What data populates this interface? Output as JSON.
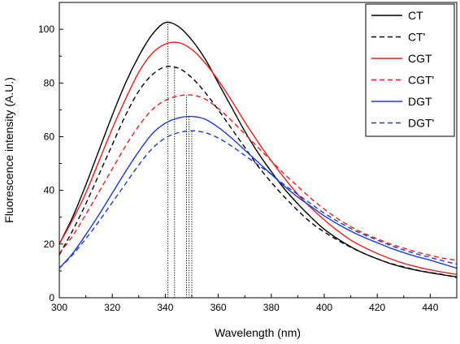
{
  "chart_data": {
    "type": "line",
    "title": "",
    "xlabel": "Wavelength (nm)",
    "ylabel": "Fluorescence intensity (A.U.)",
    "xlim": [
      300,
      450
    ],
    "ylim": [
      0,
      110
    ],
    "xticks": [
      300,
      320,
      340,
      360,
      380,
      400,
      420,
      440
    ],
    "yticks": [
      0,
      20,
      40,
      60,
      80,
      100
    ],
    "legend_position": "top-right",
    "grid": false,
    "x": [
      300,
      305,
      310,
      315,
      320,
      325,
      330,
      335,
      340,
      345,
      350,
      355,
      360,
      365,
      370,
      375,
      380,
      385,
      390,
      395,
      400,
      405,
      410,
      415,
      420,
      425,
      430,
      435,
      440,
      445,
      450
    ],
    "series": [
      {
        "name": "CT",
        "color": "#000000",
        "dash": "solid",
        "values": [
          20,
          30,
          42,
          55,
          68,
          80,
          90,
          98,
          102.5,
          101,
          96,
          89,
          80,
          71,
          62,
          54,
          47,
          40.5,
          35,
          30,
          25.5,
          22,
          19,
          16.5,
          14.5,
          12.7,
          11.3,
          10.2,
          9.3,
          8.5,
          7.8
        ]
      },
      {
        "name": "CT'",
        "color": "#000000",
        "dash": "dashed",
        "values": [
          16,
          25,
          35,
          46,
          57,
          68,
          77,
          83,
          86,
          85.5,
          82,
          76.5,
          70,
          63,
          56,
          49,
          43,
          37.5,
          32.5,
          28,
          24.5,
          21.5,
          18.8,
          16.5,
          14.5,
          12.8,
          11.5,
          10.3,
          9.4,
          8.6,
          7.5
        ]
      },
      {
        "name": "CGT",
        "color": "#e8211a",
        "dash": "solid",
        "values": [
          20,
          29,
          39,
          51,
          63,
          74,
          84,
          91,
          94.5,
          95,
          92.5,
          87.5,
          81,
          73.5,
          65.5,
          58,
          51,
          44.5,
          38.5,
          33.5,
          29,
          25,
          21.5,
          18.8,
          16.5,
          14.5,
          12.8,
          11.5,
          10.4,
          9.5,
          8.7
        ]
      },
      {
        "name": "CGT'",
        "color": "#e8211a",
        "dash": "dashed",
        "values": [
          16.5,
          23,
          31,
          39.5,
          48,
          56.5,
          64,
          70,
          73.5,
          75.2,
          75.5,
          74,
          70.5,
          66,
          61,
          56,
          51,
          46,
          41.5,
          37,
          33,
          29.5,
          26.5,
          24,
          22,
          20,
          18.5,
          17,
          15.8,
          14.7,
          14
        ]
      },
      {
        "name": "DGT",
        "color": "#1f3bd8",
        "dash": "solid",
        "values": [
          11,
          16.5,
          23.5,
          31,
          39,
          47,
          54.5,
          61,
          65,
          67,
          67.5,
          66.5,
          63.5,
          59.5,
          55,
          50.5,
          46,
          41.5,
          37.5,
          34,
          30.5,
          27.5,
          24.8,
          22.5,
          20.5,
          18.5,
          16.8,
          15.3,
          14,
          12.5,
          11
        ]
      },
      {
        "name": "DGT'",
        "color": "#1f3bd8",
        "dash": "dashed",
        "values": [
          11,
          16,
          22,
          28.5,
          35.5,
          42.5,
          49.5,
          55.5,
          59.5,
          61.5,
          62.2,
          61.5,
          59.5,
          56.5,
          53,
          49.5,
          46,
          42,
          38.5,
          35,
          31.5,
          28.5,
          25.8,
          23.5,
          21.5,
          19.5,
          17.8,
          16.3,
          15,
          13.7,
          12.5
        ]
      }
    ],
    "peak_markers": [
      {
        "x": 341,
        "y": 102.5
      },
      {
        "x": 343.5,
        "y": 86
      },
      {
        "x": 348,
        "y": 75.5
      },
      {
        "x": 349,
        "y": 67.5
      },
      {
        "x": 350,
        "y": 62.2
      }
    ]
  }
}
